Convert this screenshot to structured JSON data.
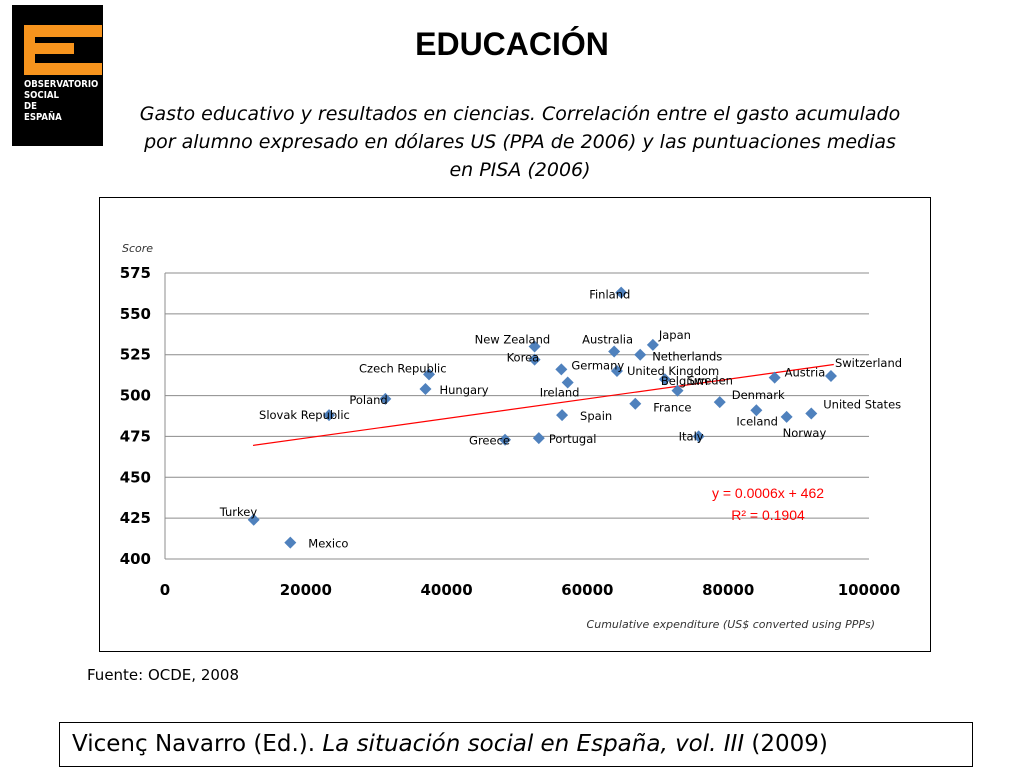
{
  "logo": {
    "lines": [
      "OBSERVATORIO",
      "SOCIAL",
      "DE",
      "ESPAÑA"
    ],
    "colors": {
      "background": "#000000",
      "accent": "#f7941d"
    }
  },
  "header": {
    "title": "EDUCACIÓN",
    "subtitle": "Gasto educativo y resultados en ciencias. Correlación entre el gasto acumulado por alumno expresado en dólares US (PPA de 2006) y las puntuaciones medias en PISA (2006)"
  },
  "chart_data": {
    "type": "scatter",
    "xlabel": "Cumulative expenditure (US$ converted using PPPs)",
    "ylabel": "Score",
    "xlim": [
      0,
      100000
    ],
    "ylim": [
      400,
      575
    ],
    "xticks": [
      "0",
      "20000",
      "40000",
      "60000",
      "80000",
      "100000"
    ],
    "yticks": [
      "400",
      "425",
      "450",
      "475",
      "500",
      "525",
      "550",
      "575"
    ],
    "grid": true,
    "marker_color": "#4f81bd",
    "trendline_color": "#ff0000",
    "trendline": {
      "slope": 0.0006,
      "intercept": 462,
      "x_start": 12500,
      "x_end": 95000
    },
    "equation": "y = 0.0006x + 462",
    "r_squared": "R² = 0.1904",
    "points": [
      {
        "label": "Finland",
        "x": 64800,
        "y": 563
      },
      {
        "label": "New Zealand",
        "x": 52500,
        "y": 530
      },
      {
        "label": "Korea",
        "x": 52500,
        "y": 522
      },
      {
        "label": "Australia",
        "x": 63800,
        "y": 527
      },
      {
        "label": "Japan",
        "x": 69300,
        "y": 531
      },
      {
        "label": "Netherlands",
        "x": 67500,
        "y": 525
      },
      {
        "label": "United Kingdom",
        "x": 64200,
        "y": 515
      },
      {
        "label": "Germany",
        "x": 56300,
        "y": 516
      },
      {
        "label": "Czech Republic",
        "x": 37500,
        "y": 513
      },
      {
        "label": "Ireland",
        "x": 57200,
        "y": 508
      },
      {
        "label": "Belgium",
        "x": 71000,
        "y": 510
      },
      {
        "label": "Switzerland",
        "x": 94600,
        "y": 512
      },
      {
        "label": "Austria",
        "x": 86600,
        "y": 511
      },
      {
        "label": "Hungary",
        "x": 37000,
        "y": 504
      },
      {
        "label": "Poland",
        "x": 31300,
        "y": 498
      },
      {
        "label": "Sweden",
        "x": 72800,
        "y": 503
      },
      {
        "label": "Denmark",
        "x": 78800,
        "y": 496
      },
      {
        "label": "France",
        "x": 66800,
        "y": 495
      },
      {
        "label": "Slovak Republic",
        "x": 23300,
        "y": 488
      },
      {
        "label": "Spain",
        "x": 56400,
        "y": 488
      },
      {
        "label": "Iceland",
        "x": 84000,
        "y": 491
      },
      {
        "label": "Norway",
        "x": 88300,
        "y": 487
      },
      {
        "label": "United States",
        "x": 91800,
        "y": 489
      },
      {
        "label": "Greece",
        "x": 48300,
        "y": 473
      },
      {
        "label": "Portugal",
        "x": 53100,
        "y": 474
      },
      {
        "label": "Italy",
        "x": 75800,
        "y": 475
      },
      {
        "label": "Turkey",
        "x": 12600,
        "y": 424
      },
      {
        "label": "Mexico",
        "x": 17800,
        "y": 410
      }
    ]
  },
  "footer": {
    "source": "Fuente: OCDE, 2008",
    "citation_author": "Vicenç Navarro (Ed.). ",
    "citation_title": "La situación social en España, vol. III",
    "citation_year": " (2009)"
  }
}
